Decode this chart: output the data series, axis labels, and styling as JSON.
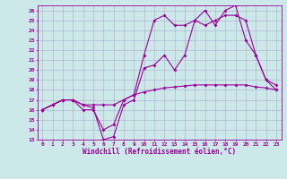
{
  "background_color": "#cce8e8",
  "grid_color": "#aaaacc",
  "line_color": "#990099",
  "xlabel": "Windchill (Refroidissement éolien,°C)",
  "xlim": [
    -0.5,
    23.5
  ],
  "ylim": [
    13,
    26.5
  ],
  "xticks": [
    0,
    1,
    2,
    3,
    4,
    5,
    6,
    7,
    8,
    9,
    10,
    11,
    12,
    13,
    14,
    15,
    16,
    17,
    18,
    19,
    20,
    21,
    22,
    23
  ],
  "yticks": [
    13,
    14,
    15,
    16,
    17,
    18,
    19,
    20,
    21,
    22,
    23,
    24,
    25,
    26
  ],
  "series1_x": [
    0,
    1,
    2,
    3,
    4,
    5,
    6,
    7,
    8,
    9,
    10,
    11,
    12,
    13,
    14,
    15,
    16,
    17,
    18,
    19,
    20,
    21,
    22,
    23
  ],
  "series1_y": [
    16.0,
    16.5,
    17.0,
    17.0,
    16.5,
    16.2,
    13.0,
    13.3,
    16.5,
    17.0,
    20.2,
    20.5,
    21.5,
    20.0,
    21.5,
    25.0,
    26.0,
    24.5,
    26.0,
    26.5,
    23.0,
    21.5,
    19.0,
    18.0
  ],
  "series2_x": [
    0,
    1,
    2,
    3,
    4,
    5,
    6,
    7,
    8,
    9,
    10,
    11,
    12,
    13,
    14,
    15,
    16,
    17,
    18,
    19,
    20,
    21,
    22,
    23
  ],
  "series2_y": [
    16.0,
    16.5,
    17.0,
    17.0,
    16.0,
    16.0,
    14.0,
    14.5,
    17.0,
    17.5,
    21.5,
    25.0,
    25.5,
    24.5,
    24.5,
    25.0,
    24.5,
    25.0,
    25.5,
    25.5,
    25.0,
    21.5,
    19.0,
    18.5
  ],
  "series3_x": [
    0,
    1,
    2,
    3,
    4,
    5,
    6,
    7,
    8,
    9,
    10,
    11,
    12,
    13,
    14,
    15,
    16,
    17,
    18,
    19,
    20,
    21,
    22,
    23
  ],
  "series3_y": [
    16.0,
    16.5,
    17.0,
    17.0,
    16.5,
    16.5,
    16.5,
    16.5,
    17.0,
    17.5,
    17.8,
    18.0,
    18.2,
    18.3,
    18.4,
    18.5,
    18.5,
    18.5,
    18.5,
    18.5,
    18.5,
    18.3,
    18.2,
    18.0
  ],
  "tick_fontsize": 4.5,
  "xlabel_fontsize": 5.5,
  "marker_size": 2.0,
  "line_width": 0.8
}
